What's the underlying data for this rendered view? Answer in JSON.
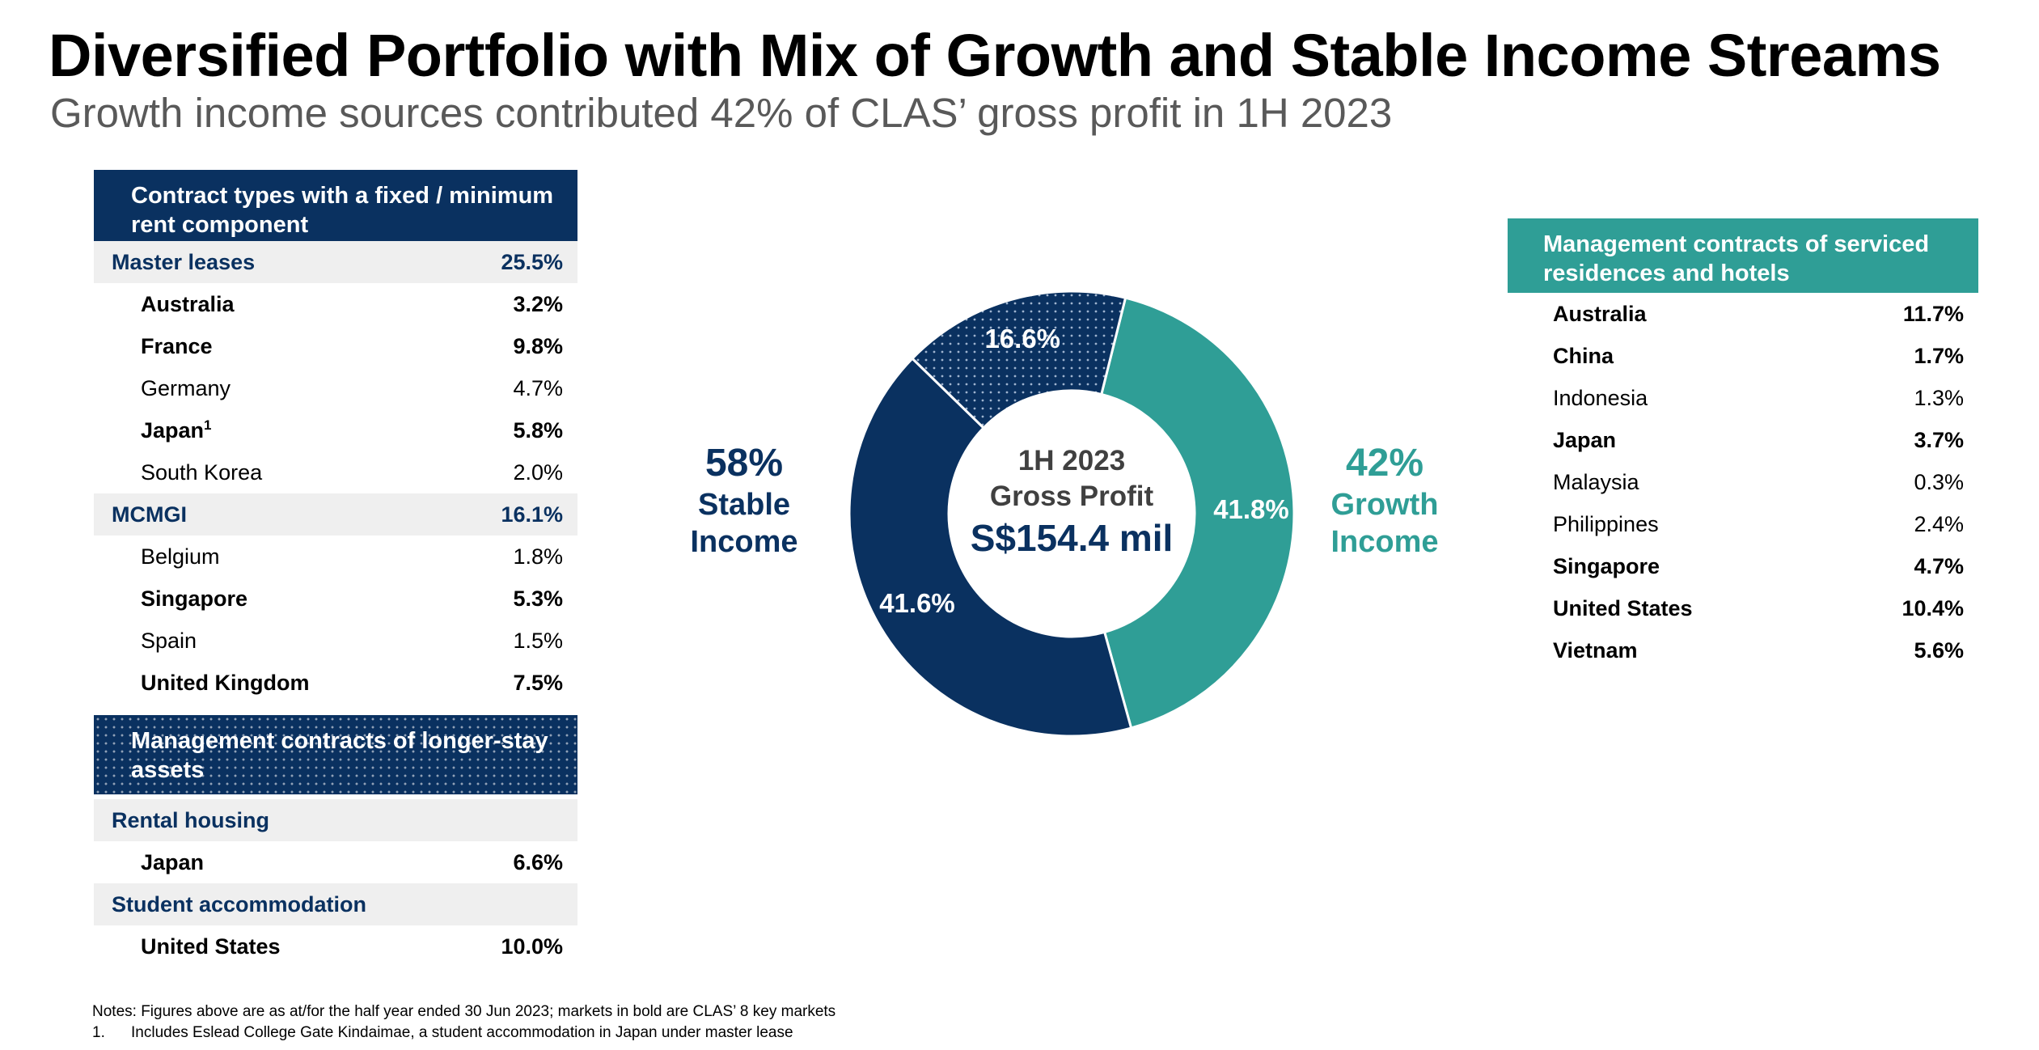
{
  "title": "Diversified Portfolio with Mix of Growth and Stable Income Streams",
  "subtitle": "Growth income sources contributed 42% of CLAS’ gross profit in 1H 2023",
  "left_panel": {
    "header": "Contract types with a fixed / minimum rent component",
    "groups": [
      {
        "label": "Master leases",
        "value": "25.5%",
        "items": [
          {
            "label": "Australia",
            "value": "3.2%",
            "bold": true
          },
          {
            "label": "France",
            "value": "9.8%",
            "bold": true
          },
          {
            "label": "Germany",
            "value": "4.7%",
            "bold": false
          },
          {
            "label": "Japan",
            "sup": "1",
            "value": "5.8%",
            "bold": true
          },
          {
            "label": "South Korea",
            "value": "2.0%",
            "bold": false
          }
        ]
      },
      {
        "label": "MCMGI",
        "value": "16.1%",
        "items": [
          {
            "label": "Belgium",
            "value": "1.8%",
            "bold": false
          },
          {
            "label": "Singapore",
            "value": "5.3%",
            "bold": true
          },
          {
            "label": "Spain",
            "value": "1.5%",
            "bold": false
          },
          {
            "label": "United Kingdom",
            "value": "7.5%",
            "bold": true
          }
        ]
      }
    ]
  },
  "longer_stay_panel": {
    "header": "Management contracts of longer-stay assets",
    "groups": [
      {
        "label": "Rental housing",
        "items": [
          {
            "label": "Japan",
            "value": "6.6%",
            "bold": true
          }
        ]
      },
      {
        "label": "Student accommodation",
        "items": [
          {
            "label": "United States",
            "value": "10.0%",
            "bold": true
          }
        ]
      }
    ]
  },
  "right_panel": {
    "header": "Management contracts of serviced residences and hotels",
    "items": [
      {
        "label": "Australia",
        "value": "11.7%",
        "bold": true
      },
      {
        "label": "China",
        "value": "1.7%",
        "bold": true
      },
      {
        "label": "Indonesia",
        "value": "1.3%",
        "bold": false
      },
      {
        "label": "Japan",
        "value": "3.7%",
        "bold": true
      },
      {
        "label": "Malaysia",
        "value": "0.3%",
        "bold": false
      },
      {
        "label": "Philippines",
        "value": "2.4%",
        "bold": false
      },
      {
        "label": "Singapore",
        "value": "4.7%",
        "bold": true
      },
      {
        "label": "United States",
        "value": "10.4%",
        "bold": true
      },
      {
        "label": "Vietnam",
        "value": "5.6%",
        "bold": true
      }
    ]
  },
  "stable_label": {
    "pct": "58%",
    "line1": "Stable",
    "line2": "Income"
  },
  "growth_label": {
    "pct": "42%",
    "line1": "Growth",
    "line2": "Income"
  },
  "center": {
    "line1": "1H 2023",
    "line2": "Gross Profit",
    "line3": "S$154.4 mil"
  },
  "chart_data": {
    "type": "pie",
    "donut": true,
    "slices": [
      {
        "label": "41.8%",
        "value": 41.8,
        "color": "#2f9e96",
        "pattern": "solid"
      },
      {
        "label": "41.6%",
        "value": 41.6,
        "color": "#0a3160",
        "pattern": "solid"
      },
      {
        "label": "16.6%",
        "value": 16.6,
        "color": "#0a3160",
        "pattern": "dotted"
      }
    ]
  },
  "notes": {
    "line1": "Notes: Figures above are as at/for the half year ended 30 Jun 2023; markets in bold are CLAS’ 8 key markets",
    "line2_num": "1.",
    "line2": "Includes Eslead College Gate Kindaimae, a student accommodation in Japan under master lease"
  },
  "colors": {
    "navy": "#0a3160",
    "teal": "#2f9e96",
    "grey_row": "#efefef",
    "subtitle": "#595959"
  }
}
